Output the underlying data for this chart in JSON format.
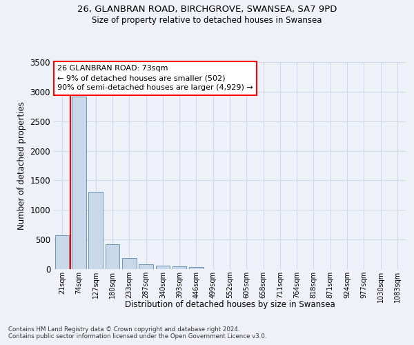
{
  "title_line1": "26, GLANBRAN ROAD, BIRCHGROVE, SWANSEA, SA7 9PD",
  "title_line2": "Size of property relative to detached houses in Swansea",
  "xlabel": "Distribution of detached houses by size in Swansea",
  "ylabel": "Number of detached properties",
  "footnote1": "Contains HM Land Registry data © Crown copyright and database right 2024.",
  "footnote2": "Contains public sector information licensed under the Open Government Licence v3.0.",
  "categories": [
    "21sqm",
    "74sqm",
    "127sqm",
    "180sqm",
    "233sqm",
    "287sqm",
    "340sqm",
    "393sqm",
    "446sqm",
    "499sqm",
    "552sqm",
    "605sqm",
    "658sqm",
    "711sqm",
    "764sqm",
    "818sqm",
    "871sqm",
    "924sqm",
    "977sqm",
    "1030sqm",
    "1083sqm"
  ],
  "values": [
    570,
    2920,
    1310,
    415,
    185,
    80,
    55,
    45,
    37,
    0,
    0,
    0,
    0,
    0,
    0,
    0,
    0,
    0,
    0,
    0,
    0
  ],
  "bar_color": "#c8d8e8",
  "bar_edge_color": "#5a8ab0",
  "grid_color": "#d0d8e8",
  "background_color": "#eef2f8",
  "annotation_text": "26 GLANBRAN ROAD: 73sqm\n← 9% of detached houses are smaller (502)\n90% of semi-detached houses are larger (4,929) →",
  "annotation_box_color": "white",
  "annotation_box_edge": "red",
  "vline_color": "red",
  "ylim": [
    0,
    3500
  ],
  "yticks": [
    0,
    500,
    1000,
    1500,
    2000,
    2500,
    3000,
    3500
  ]
}
